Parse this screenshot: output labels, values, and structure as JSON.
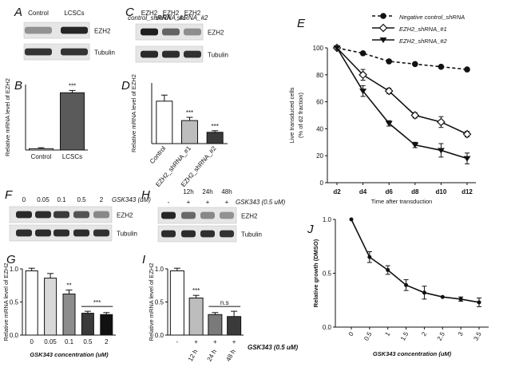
{
  "panels": {
    "A": {
      "letter": "A",
      "lanes": [
        "Control",
        "LCSCs"
      ],
      "rows": [
        "EZH2",
        "Tubulin"
      ],
      "intensity": {
        "EZH2": [
          0.4,
          0.92
        ],
        "Tubulin": [
          0.85,
          0.85
        ]
      }
    },
    "C": {
      "letter": "C",
      "lanes": [
        {
          "main": "EZH2",
          "sub": "control_shRNA"
        },
        {
          "main": "EZH2",
          "sub": "shRNA_#1"
        },
        {
          "main": "EZH2",
          "sub": "shRNA_#2"
        }
      ],
      "rows": [
        "EZH2",
        "Tubulin"
      ],
      "intensity": {
        "EZH2": [
          0.95,
          0.62,
          0.42
        ],
        "Tubulin": [
          0.9,
          0.88,
          0.86
        ]
      }
    },
    "F": {
      "letter": "F",
      "lanes": [
        "0",
        "0.05",
        "0.1",
        "0.5",
        "2"
      ],
      "unit": "GSK343 (uM)",
      "rows": [
        "EZH2",
        "Tubulin"
      ],
      "intensity": {
        "EZH2": [
          0.9,
          0.88,
          0.82,
          0.7,
          0.45
        ],
        "Tubulin": [
          0.88,
          0.88,
          0.88,
          0.88,
          0.86
        ]
      }
    },
    "H": {
      "letter": "H",
      "times": [
        "12h",
        "24h",
        "48h"
      ],
      "signs": [
        "-",
        "+",
        "+",
        "+"
      ],
      "unit": "GSK343 (0.5 uM)",
      "rows": [
        "EZH2",
        "Tubulin"
      ],
      "intensity": {
        "EZH2": [
          0.92,
          0.6,
          0.45,
          0.4
        ],
        "Tubulin": [
          0.88,
          0.88,
          0.87,
          0.86
        ]
      }
    }
  },
  "chart_data": [
    {
      "id": "B",
      "letter": "B",
      "type": "bar",
      "ylabel": "Relative mRNA level of EZH2",
      "ylim": [
        0,
        2.0
      ],
      "categories": [
        "Control",
        "LCSCs"
      ],
      "values": [
        0.04,
        1.75
      ],
      "errors": [
        0.03,
        0.07
      ],
      "colors": [
        "#ffffff",
        "#5a5a5a"
      ],
      "stars": [
        "",
        "***"
      ]
    },
    {
      "id": "D",
      "letter": "D",
      "type": "bar",
      "ylabel": "Relative mRNA level of EZH2",
      "ylim": [
        0,
        1.5
      ],
      "categories": [
        "Control",
        "EZH2_shRNA_#1",
        "EZH2_shRNA_#2"
      ],
      "values": [
        1.05,
        0.57,
        0.28
      ],
      "errors": [
        0.15,
        0.08,
        0.04
      ],
      "colors": [
        "#ffffff",
        "#bdbdbd",
        "#3a3a3a"
      ],
      "stars": [
        "",
        "***",
        "***"
      ]
    },
    {
      "id": "E",
      "letter": "E",
      "type": "line",
      "ylabel": "Live transduced cells (% of d2 fraction)",
      "ylabel_lines": [
        "Live transduced cells",
        "(% of d2 fraction)"
      ],
      "xlabel": "Time after transduction",
      "categories": [
        "d2",
        "d4",
        "d6",
        "d8",
        "d10",
        "d12"
      ],
      "ylim": [
        0,
        100
      ],
      "yticks": [
        0,
        20,
        40,
        60,
        80,
        100
      ],
      "series": [
        {
          "name": "Negative control_shRNA",
          "values": [
            100,
            96,
            90,
            88,
            86,
            84
          ],
          "errors": [
            0,
            1,
            1,
            1,
            1,
            1
          ],
          "style": "dashed",
          "marker": "circle"
        },
        {
          "name": "EZH2_shRNA_#1",
          "values": [
            100,
            80,
            68,
            50,
            45,
            36
          ],
          "errors": [
            0,
            4,
            2,
            2,
            4,
            2
          ],
          "style": "solid",
          "marker": "diamond"
        },
        {
          "name": "EZH2_shRNA_#2",
          "values": [
            100,
            68,
            44,
            28,
            24,
            18
          ],
          "errors": [
            0,
            4,
            2,
            2,
            5,
            4
          ],
          "style": "solid",
          "marker": "triangle"
        }
      ]
    },
    {
      "id": "G",
      "letter": "G",
      "type": "bar",
      "ylabel": "Relative mRNA level of EZH2",
      "xlabel": "GSK343 concentration (uM)",
      "ylim": [
        0,
        1.0
      ],
      "yticks": [
        0.0,
        0.5,
        1.0
      ],
      "categories": [
        "0",
        "0.05",
        "0.1",
        "0.5",
        "2"
      ],
      "values": [
        0.97,
        0.86,
        0.62,
        0.33,
        0.31
      ],
      "errors": [
        0.04,
        0.07,
        0.06,
        0.03,
        0.03
      ],
      "colors": [
        "#ffffff",
        "#d9d9d9",
        "#8c8c8c",
        "#3a3a3a",
        "#111111"
      ],
      "stars": [
        "",
        "",
        "**",
        "",
        ""
      ],
      "bracket": {
        "from": 3,
        "to": 4,
        "label": "***"
      }
    },
    {
      "id": "I",
      "letter": "I",
      "type": "bar",
      "ylabel": "Relative mRNA level of EZH2",
      "ylim": [
        0,
        1.0
      ],
      "yticks": [
        0.0,
        0.5,
        1.0
      ],
      "categories": [
        "-",
        "+",
        "+",
        "+"
      ],
      "times": [
        "",
        "12 h",
        "24 h",
        "48 h"
      ],
      "treatment_label": "GSK343 (0.5 uM)",
      "values": [
        0.97,
        0.56,
        0.31,
        0.28
      ],
      "errors": [
        0.04,
        0.04,
        0.03,
        0.08
      ],
      "colors": [
        "#ffffff",
        "#bdbdbd",
        "#7a7a7a",
        "#3a3a3a"
      ],
      "stars": [
        "",
        "***",
        "",
        ""
      ],
      "bracket": {
        "from": 2,
        "to": 3,
        "label": "n.s"
      }
    },
    {
      "id": "J",
      "letter": "J",
      "type": "line",
      "ylabel": "Relative growth (DMSO)",
      "xlabel": "GSK343 concentration (uM)",
      "ylim": [
        0,
        1.0
      ],
      "yticks": [
        0.0,
        0.5,
        1.0
      ],
      "x": [
        0,
        0.5,
        1,
        1.5,
        2,
        2.5,
        3,
        3.5
      ],
      "xlim": [
        0,
        3.5
      ],
      "series": [
        {
          "name": "",
          "values": [
            1.0,
            0.65,
            0.53,
            0.39,
            0.32,
            0.28,
            0.26,
            0.23
          ],
          "errors": [
            0,
            0.05,
            0.04,
            0.05,
            0.06,
            0,
            0.02,
            0.04
          ]
        }
      ]
    }
  ]
}
